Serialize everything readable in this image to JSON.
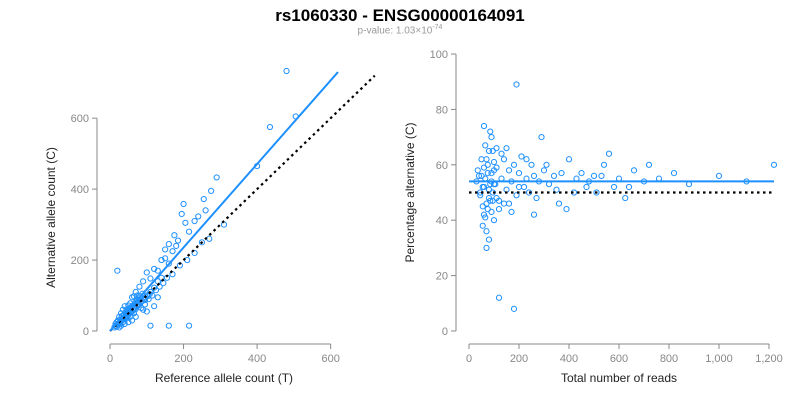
{
  "title": "rs1060330 - ENSG00000164091",
  "subtitle_prefix": "p-value: 1.03×10",
  "subtitle_exponent": "-74",
  "colors": {
    "points": "#1e90ff",
    "fit": "#1e90ff",
    "reference": "#000000",
    "axis": "#888888"
  },
  "chart_data": [
    {
      "type": "scatter",
      "xlabel": "Reference allele count (T)",
      "ylabel": "Alternative allele count (C)",
      "xlim": [
        0,
        620
      ],
      "ylim": [
        0,
        640
      ],
      "x_ticks": [
        0,
        200,
        400,
        600
      ],
      "y_ticks": [
        0,
        200,
        400,
        600
      ],
      "fit_line": {
        "x": [
          0,
          620
        ],
        "y": [
          0,
          730
        ]
      },
      "reference_line": {
        "x": [
          0,
          720
        ],
        "y": [
          0,
          720
        ],
        "style": "dotted"
      },
      "points": [
        [
          480,
          733
        ],
        [
          505,
          605
        ],
        [
          435,
          575
        ],
        [
          400,
          465
        ],
        [
          310,
          300
        ],
        [
          290,
          433
        ],
        [
          275,
          395
        ],
        [
          260,
          340
        ],
        [
          255,
          372
        ],
        [
          240,
          323
        ],
        [
          230,
          310
        ],
        [
          215,
          280
        ],
        [
          205,
          305
        ],
        [
          200,
          358
        ],
        [
          195,
          330
        ],
        [
          180,
          240
        ],
        [
          170,
          225
        ],
        [
          160,
          190
        ],
        [
          150,
          205
        ],
        [
          140,
          150
        ],
        [
          130,
          140
        ],
        [
          120,
          122
        ],
        [
          110,
          110
        ],
        [
          100,
          100
        ],
        [
          95,
          87
        ],
        [
          85,
          82
        ],
        [
          80,
          75
        ],
        [
          75,
          88
        ],
        [
          70,
          62
        ],
        [
          65,
          63
        ],
        [
          60,
          55
        ],
        [
          55,
          58
        ],
        [
          50,
          45
        ],
        [
          45,
          48
        ],
        [
          40,
          38
        ],
        [
          35,
          35
        ],
        [
          30,
          28
        ],
        [
          25,
          22
        ],
        [
          20,
          18
        ],
        [
          15,
          14
        ],
        [
          12,
          10
        ],
        [
          18,
          25
        ],
        [
          25,
          40
        ],
        [
          30,
          50
        ],
        [
          35,
          60
        ],
        [
          40,
          70
        ],
        [
          45,
          60
        ],
        [
          50,
          72
        ],
        [
          55,
          78
        ],
        [
          60,
          95
        ],
        [
          65,
          98
        ],
        [
          70,
          110
        ],
        [
          75,
          100
        ],
        [
          80,
          125
        ],
        [
          90,
          140
        ],
        [
          100,
          165
        ],
        [
          110,
          148
        ],
        [
          120,
          175
        ],
        [
          130,
          170
        ],
        [
          140,
          200
        ],
        [
          150,
          230
        ],
        [
          160,
          245
        ],
        [
          175,
          270
        ],
        [
          185,
          255
        ],
        [
          20,
          170
        ],
        [
          160,
          15
        ],
        [
          110,
          15
        ],
        [
          215,
          15
        ],
        [
          100,
          55
        ],
        [
          120,
          70
        ],
        [
          130,
          95
        ],
        [
          90,
          60
        ],
        [
          70,
          40
        ],
        [
          60,
          30
        ],
        [
          50,
          25
        ],
        [
          40,
          20
        ],
        [
          30,
          15
        ],
        [
          25,
          10
        ],
        [
          35,
          25
        ],
        [
          45,
          35
        ],
        [
          55,
          40
        ],
        [
          65,
          50
        ],
        [
          85,
          65
        ],
        [
          95,
          75
        ],
        [
          105,
          90
        ],
        [
          115,
          100
        ],
        [
          125,
          115
        ],
        [
          135,
          125
        ],
        [
          145,
          135
        ],
        [
          155,
          150
        ],
        [
          170,
          160
        ],
        [
          190,
          185
        ],
        [
          210,
          200
        ],
        [
          230,
          220
        ],
        [
          250,
          250
        ],
        [
          270,
          260
        ],
        [
          22,
          30
        ],
        [
          28,
          32
        ],
        [
          32,
          42
        ],
        [
          38,
          45
        ],
        [
          42,
          52
        ],
        [
          48,
          55
        ],
        [
          52,
          62
        ],
        [
          58,
          68
        ],
        [
          62,
          72
        ],
        [
          68,
          78
        ],
        [
          72,
          85
        ],
        [
          78,
          92
        ],
        [
          82,
          98
        ],
        [
          88,
          105
        ],
        [
          15,
          20
        ],
        [
          18,
          12
        ],
        [
          22,
          18
        ],
        [
          26,
          24
        ],
        [
          28,
          20
        ],
        [
          33,
          30
        ],
        [
          37,
          33
        ],
        [
          43,
          40
        ],
        [
          47,
          42
        ],
        [
          53,
          50
        ],
        [
          57,
          52
        ],
        [
          63,
          58
        ],
        [
          67,
          64
        ],
        [
          73,
          70
        ],
        [
          77,
          72
        ],
        [
          83,
          80
        ],
        [
          87,
          85
        ],
        [
          93,
          90
        ],
        [
          97,
          95
        ],
        [
          103,
          98
        ],
        [
          108,
          104
        ]
      ]
    },
    {
      "type": "scatter",
      "xlabel": "Total number of reads",
      "ylabel": "Percentage alternative (C)",
      "xlim": [
        0,
        1200
      ],
      "ylim": [
        0,
        100
      ],
      "x_ticks": [
        0,
        200,
        400,
        600,
        800,
        1000,
        1200
      ],
      "x_tick_labels": [
        "0",
        "200",
        "400",
        "600",
        "800",
        "1,000",
        "1,200"
      ],
      "y_ticks": [
        0,
        20,
        40,
        60,
        80,
        100
      ],
      "fit_line": {
        "x": [
          0,
          1220
        ],
        "y": [
          54,
          54
        ]
      },
      "reference_line": {
        "x": [
          0,
          1220
        ],
        "y": [
          50,
          50
        ],
        "style": "dotted"
      },
      "points": [
        [
          190,
          89
        ],
        [
          120,
          12
        ],
        [
          180,
          8
        ],
        [
          1220,
          60
        ],
        [
          1110,
          54
        ],
        [
          1000,
          56
        ],
        [
          880,
          53
        ],
        [
          720,
          60
        ],
        [
          660,
          58
        ],
        [
          640,
          52
        ],
        [
          625,
          48
        ],
        [
          600,
          55
        ],
        [
          560,
          64
        ],
        [
          540,
          60
        ],
        [
          500,
          56
        ],
        [
          470,
          52
        ],
        [
          430,
          55
        ],
        [
          400,
          62
        ],
        [
          390,
          44
        ],
        [
          370,
          57
        ],
        [
          350,
          51
        ],
        [
          320,
          53
        ],
        [
          300,
          58
        ],
        [
          290,
          70
        ],
        [
          280,
          54
        ],
        [
          270,
          48
        ],
        [
          260,
          56
        ],
        [
          250,
          60
        ],
        [
          240,
          50
        ],
        [
          230,
          55
        ],
        [
          220,
          52
        ],
        [
          210,
          63
        ],
        [
          200,
          57
        ],
        [
          190,
          49
        ],
        [
          180,
          60
        ],
        [
          170,
          54
        ],
        [
          160,
          58
        ],
        [
          150,
          51
        ],
        [
          140,
          62
        ],
        [
          130,
          55
        ],
        [
          120,
          47
        ],
        [
          110,
          59
        ],
        [
          100,
          53
        ],
        [
          95,
          65
        ],
        [
          90,
          43
        ],
        [
          85,
          72
        ],
        [
          80,
          48
        ],
        [
          75,
          60
        ],
        [
          70,
          36
        ],
        [
          65,
          67
        ],
        [
          60,
          52
        ],
        [
          55,
          45
        ],
        [
          50,
          62
        ],
        [
          45,
          50
        ],
        [
          40,
          56
        ],
        [
          35,
          58
        ],
        [
          30,
          54
        ],
        [
          60,
          74
        ],
        [
          70,
          30
        ],
        [
          80,
          33
        ],
        [
          90,
          70
        ],
        [
          100,
          40
        ],
        [
          110,
          66
        ],
        [
          120,
          44
        ],
        [
          130,
          64
        ],
        [
          140,
          46
        ],
        [
          55,
          38
        ],
        [
          65,
          41
        ],
        [
          75,
          44
        ],
        [
          85,
          47
        ],
        [
          95,
          50
        ],
        [
          105,
          53
        ],
        [
          50,
          56
        ],
        [
          60,
          59
        ],
        [
          70,
          62
        ],
        [
          80,
          65
        ],
        [
          90,
          57
        ],
        [
          100,
          61
        ],
        [
          45,
          49
        ],
        [
          55,
          52
        ],
        [
          65,
          55
        ],
        [
          75,
          57
        ],
        [
          85,
          53
        ],
        [
          95,
          47
        ],
        [
          60,
          42
        ],
        [
          70,
          46
        ],
        [
          80,
          51
        ],
        [
          90,
          54
        ],
        [
          100,
          58
        ],
        [
          110,
          48
        ],
        [
          150,
          66
        ],
        [
          160,
          46
        ],
        [
          170,
          43
        ],
        [
          200,
          52
        ],
        [
          230,
          62
        ],
        [
          260,
          42
        ],
        [
          310,
          60
        ],
        [
          340,
          56
        ],
        [
          360,
          46
        ],
        [
          420,
          50
        ],
        [
          450,
          57
        ],
        [
          480,
          54
        ],
        [
          510,
          50
        ],
        [
          530,
          56
        ],
        [
          580,
          52
        ],
        [
          700,
          54
        ],
        [
          760,
          55
        ],
        [
          820,
          57
        ]
      ]
    }
  ]
}
